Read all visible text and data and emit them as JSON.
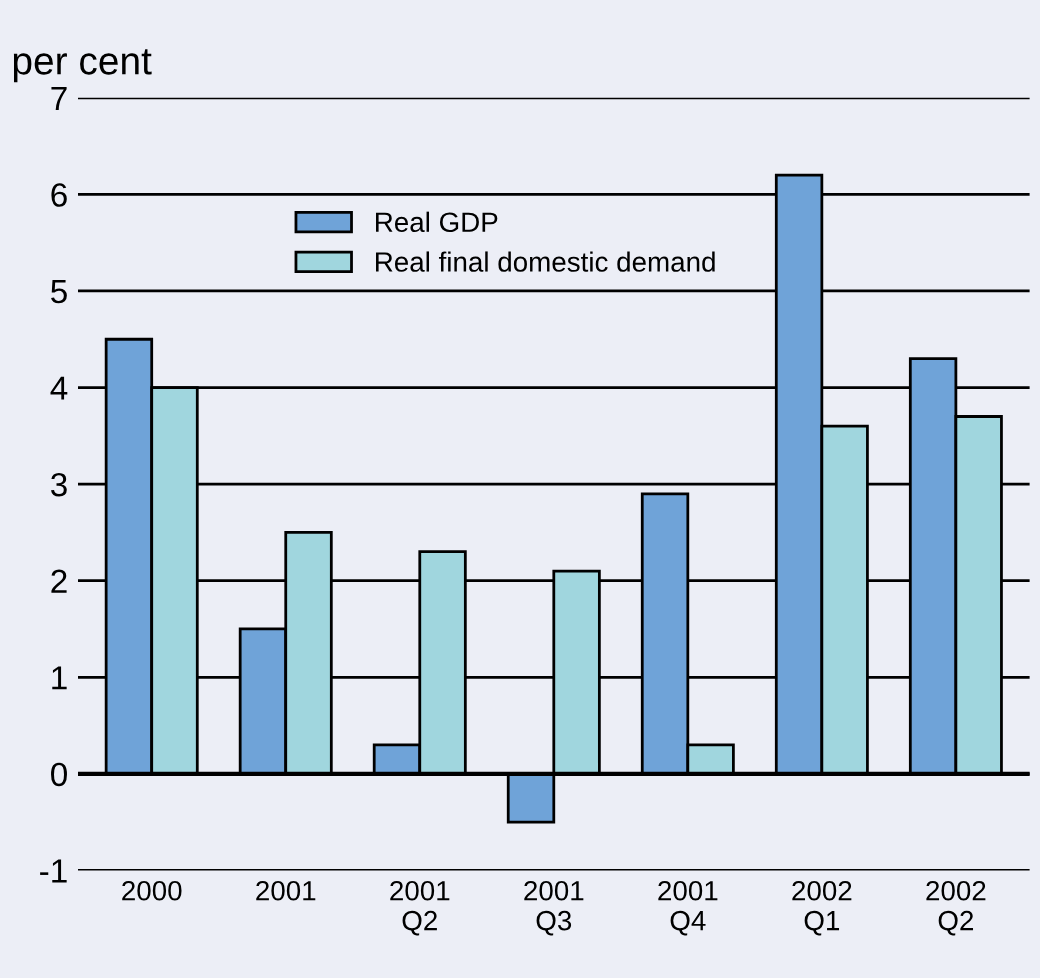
{
  "chart_data": {
    "type": "bar",
    "ylabel": "per cent",
    "categories": [
      "2000",
      "2001",
      "2001\nQ2",
      "2001\nQ3",
      "2001\nQ4",
      "2002\nQ1",
      "2002\nQ2"
    ],
    "series": [
      {
        "name": "Real GDP",
        "color": "#6fa3d8",
        "values": [
          4.5,
          1.5,
          0.3,
          -0.5,
          2.9,
          6.2,
          4.3
        ]
      },
      {
        "name": "Real final domestic demand",
        "color": "#a0d6de",
        "values": [
          4.0,
          2.5,
          2.3,
          2.1,
          0.3,
          3.6,
          3.7
        ]
      }
    ],
    "ylim": [
      -1,
      7
    ],
    "yticks": [
      -1,
      0,
      1,
      2,
      3,
      4,
      5,
      6,
      7
    ],
    "grid": "y",
    "legend": "top"
  }
}
